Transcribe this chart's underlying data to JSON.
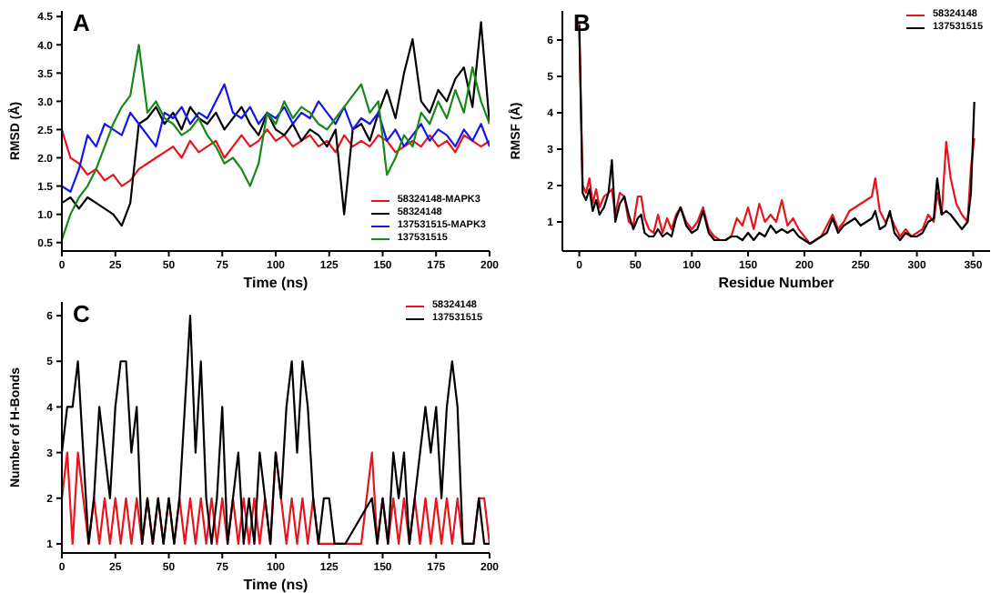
{
  "chart_data": [
    {
      "type": "line",
      "title": "A",
      "xlabel": "Time (ns)",
      "ylabel": "RMSD (Å)",
      "xlim": [
        0,
        200
      ],
      "ylim": [
        0.35,
        4.6
      ],
      "xticks": [
        0,
        25,
        50,
        75,
        100,
        125,
        150,
        175,
        200
      ],
      "yticks": [
        0.5,
        {
          "value": 1,
          "label": "1.0"
        },
        1.5,
        {
          "value": 2,
          "label": "2.0"
        },
        2.5,
        {
          "value": 3,
          "label": "3.0"
        },
        3.5,
        {
          "value": 4,
          "label": "4.0"
        },
        4.5
      ],
      "grid": false,
      "legend": "bottom right",
      "marker": "none",
      "line_style": "solid",
      "x": [
        0,
        4,
        8,
        12,
        16,
        20,
        24,
        28,
        32,
        36,
        40,
        44,
        48,
        52,
        56,
        60,
        64,
        68,
        72,
        76,
        80,
        84,
        88,
        92,
        96,
        100,
        104,
        108,
        112,
        116,
        120,
        124,
        128,
        132,
        136,
        140,
        144,
        148,
        152,
        156,
        160,
        164,
        168,
        172,
        176,
        180,
        184,
        188,
        192,
        196,
        200
      ],
      "series": [
        {
          "name": "58324148-MAPK3",
          "color": "#e8141b",
          "values": [
            2.5,
            2.0,
            1.9,
            1.7,
            1.8,
            1.6,
            1.7,
            1.5,
            1.6,
            1.8,
            1.9,
            2.0,
            2.1,
            2.2,
            2.0,
            2.3,
            2.1,
            2.2,
            2.3,
            2.0,
            2.2,
            2.4,
            2.2,
            2.3,
            2.5,
            2.3,
            2.4,
            2.2,
            2.3,
            2.4,
            2.2,
            2.3,
            2.1,
            2.4,
            2.2,
            2.3,
            2.2,
            2.4,
            2.3,
            2.1,
            2.2,
            2.3,
            2.2,
            2.4,
            2.2,
            2.3,
            2.1,
            2.4,
            2.3,
            2.2,
            2.3
          ]
        },
        {
          "name": "58324148",
          "color": "#000000",
          "values": [
            1.2,
            1.3,
            1.1,
            1.3,
            1.2,
            1.1,
            1.0,
            0.8,
            1.2,
            2.6,
            2.7,
            2.9,
            2.6,
            2.8,
            2.5,
            2.9,
            2.7,
            2.6,
            2.8,
            2.5,
            2.7,
            2.9,
            2.6,
            2.4,
            2.8,
            2.5,
            2.4,
            2.6,
            2.3,
            2.5,
            2.4,
            2.2,
            2.5,
            1.0,
            2.5,
            2.6,
            2.3,
            2.8,
            3.2,
            2.7,
            3.5,
            4.1,
            3.0,
            2.8,
            3.2,
            3.0,
            3.4,
            3.6,
            2.9,
            4.4,
            2.6
          ]
        },
        {
          "name": "137531515-MAPK3",
          "color": "#1414f0",
          "values": [
            1.5,
            1.4,
            1.8,
            2.4,
            2.2,
            2.6,
            2.5,
            2.4,
            2.8,
            2.6,
            2.4,
            2.2,
            2.8,
            2.7,
            2.9,
            2.6,
            2.8,
            2.7,
            3.0,
            3.3,
            2.8,
            2.7,
            2.9,
            2.6,
            2.8,
            2.7,
            2.9,
            2.6,
            2.8,
            2.7,
            3.0,
            2.8,
            2.6,
            2.9,
            2.5,
            2.7,
            2.6,
            2.8,
            2.3,
            2.5,
            2.2,
            2.4,
            2.6,
            2.3,
            2.5,
            2.4,
            2.2,
            2.5,
            2.3,
            2.6,
            2.2
          ]
        },
        {
          "name": "137531515",
          "color": "#158a15",
          "values": [
            0.55,
            1.0,
            1.3,
            1.5,
            1.8,
            2.2,
            2.6,
            2.9,
            3.1,
            4.0,
            2.8,
            3.0,
            2.7,
            2.6,
            2.4,
            2.5,
            2.7,
            2.4,
            2.2,
            1.9,
            2.0,
            1.8,
            1.5,
            1.9,
            2.8,
            2.6,
            3.0,
            2.7,
            2.9,
            2.8,
            2.6,
            2.5,
            2.7,
            2.9,
            3.1,
            3.3,
            2.8,
            3.0,
            1.7,
            2.0,
            2.4,
            2.2,
            2.8,
            2.6,
            3.0,
            2.7,
            3.2,
            2.8,
            3.6,
            3.0,
            2.6
          ]
        }
      ]
    },
    {
      "type": "line",
      "title": "B",
      "xlabel": "Residue Number",
      "ylabel": "RMSF (Å)",
      "xlim": [
        -15,
        365
      ],
      "ylim": [
        0.2,
        6.8
      ],
      "xticks": [
        0,
        50,
        100,
        150,
        200,
        250,
        300,
        350
      ],
      "yticks": [
        1,
        2,
        3,
        4,
        5,
        6
      ],
      "grid": false,
      "legend": "top right",
      "marker": "none",
      "line_style": "solid",
      "x": [
        0,
        3,
        6,
        9,
        12,
        15,
        18,
        22,
        26,
        29,
        32,
        36,
        40,
        44,
        48,
        52,
        55,
        58,
        62,
        66,
        70,
        74,
        78,
        82,
        86,
        90,
        95,
        100,
        105,
        110,
        115,
        120,
        125,
        130,
        135,
        140,
        145,
        150,
        155,
        160,
        165,
        170,
        175,
        180,
        185,
        190,
        195,
        200,
        205,
        210,
        215,
        220,
        225,
        230,
        235,
        240,
        245,
        250,
        255,
        260,
        263,
        267,
        272,
        276,
        280,
        285,
        290,
        295,
        300,
        305,
        310,
        315,
        318,
        322,
        326,
        330,
        335,
        340,
        345,
        348,
        351
      ],
      "series": [
        {
          "name": "58324148",
          "color": "#e8141b",
          "values": [
            6.5,
            2.0,
            1.8,
            2.2,
            1.5,
            1.9,
            1.4,
            1.7,
            1.8,
            1.9,
            1.2,
            1.8,
            1.7,
            1.0,
            0.9,
            1.7,
            1.7,
            1.1,
            0.8,
            0.7,
            1.2,
            0.7,
            1.1,
            0.8,
            1.2,
            1.4,
            1.0,
            0.8,
            1.0,
            1.4,
            0.8,
            0.6,
            0.5,
            0.5,
            0.6,
            1.1,
            0.9,
            1.4,
            0.8,
            1.5,
            1.0,
            1.2,
            1.0,
            1.6,
            0.9,
            1.1,
            0.8,
            0.6,
            0.4,
            0.5,
            0.6,
            0.9,
            1.2,
            0.8,
            1.0,
            1.3,
            1.4,
            1.5,
            1.6,
            1.7,
            2.2,
            1.3,
            1.0,
            1.2,
            0.9,
            0.6,
            0.8,
            0.6,
            0.7,
            0.8,
            1.2,
            1.0,
            1.8,
            1.2,
            3.2,
            2.2,
            1.5,
            1.2,
            1.0,
            2.5,
            3.3
          ]
        },
        {
          "name": "137531515",
          "color": "#000000",
          "values": [
            6.4,
            1.8,
            1.6,
            1.9,
            1.3,
            1.6,
            1.2,
            1.4,
            1.8,
            2.7,
            1.0,
            1.5,
            1.7,
            1.2,
            0.8,
            1.1,
            1.2,
            0.7,
            0.6,
            0.6,
            0.8,
            0.6,
            0.7,
            0.6,
            1.1,
            1.4,
            0.9,
            0.7,
            0.8,
            1.3,
            0.7,
            0.5,
            0.5,
            0.5,
            0.6,
            0.6,
            0.5,
            0.7,
            0.5,
            0.7,
            0.6,
            0.9,
            0.7,
            0.8,
            0.7,
            0.8,
            0.6,
            0.5,
            0.4,
            0.5,
            0.6,
            0.7,
            1.1,
            0.7,
            0.9,
            1.0,
            1.1,
            0.9,
            1.0,
            1.1,
            1.3,
            0.8,
            0.9,
            1.3,
            0.7,
            0.5,
            0.7,
            0.6,
            0.6,
            0.7,
            1.0,
            1.1,
            2.2,
            1.2,
            1.3,
            1.2,
            1.0,
            0.8,
            1.0,
            1.8,
            4.3
          ]
        }
      ]
    },
    {
      "type": "line",
      "title": "C",
      "xlabel": "Time (ns)",
      "ylabel": "Number of H-Bonds",
      "xlim": [
        0,
        200
      ],
      "ylim": [
        0.8,
        6.3
      ],
      "xticks": [
        0,
        25,
        50,
        75,
        100,
        125,
        150,
        175,
        200
      ],
      "yticks": [
        1,
        2,
        3,
        4,
        5,
        6
      ],
      "grid": false,
      "legend": "top right",
      "marker": "none",
      "line_style": "solid",
      "x": [
        0,
        2.5,
        5,
        7.5,
        10,
        12.5,
        15,
        17.5,
        20,
        22.5,
        25,
        27.5,
        30,
        32.5,
        35,
        37.5,
        40,
        42.5,
        45,
        47.5,
        50,
        52.5,
        55,
        57.5,
        60,
        62.5,
        65,
        67.5,
        70,
        72.5,
        75,
        77.5,
        80,
        82.5,
        85,
        87.5,
        90,
        92.5,
        95,
        97.5,
        100,
        102.5,
        105,
        107.5,
        110,
        112.5,
        115,
        117.5,
        120,
        122.5,
        125,
        127.5,
        130,
        132.5,
        135,
        137.5,
        140,
        142.5,
        145,
        147.5,
        150,
        152.5,
        155,
        157.5,
        160,
        162.5,
        165,
        167.5,
        170,
        172.5,
        175,
        177.5,
        180,
        182.5,
        185,
        187.5,
        190,
        192.5,
        195,
        197.5,
        200
      ],
      "series": [
        {
          "name": "58324148",
          "color": "#e8141b",
          "values": [
            2,
            3,
            1,
            3,
            2,
            1,
            2,
            1,
            2,
            1,
            2,
            1,
            2,
            1,
            2,
            1,
            2,
            1,
            2,
            1,
            2,
            1,
            2,
            1,
            2,
            1,
            2,
            1,
            2,
            1,
            2,
            1,
            2,
            1,
            2,
            1,
            2,
            1,
            2,
            1,
            3,
            2,
            1,
            2,
            1,
            2,
            1,
            2,
            1,
            1,
            1,
            1,
            1,
            1,
            1,
            1,
            1,
            2,
            3,
            1,
            2,
            1,
            2,
            1,
            2,
            1,
            2,
            1,
            2,
            1,
            2,
            1,
            2,
            1,
            2,
            1,
            1,
            1,
            2,
            2,
            1
          ]
        },
        {
          "name": "137531515",
          "color": "#000000",
          "x": [
            0,
            2.5,
            5,
            7.5,
            10,
            12.5,
            15,
            17.5,
            20,
            22.5,
            25,
            27.5,
            30,
            32.5,
            35,
            37.5,
            40,
            42.5,
            45,
            47.5,
            50,
            52.5,
            55,
            57.5,
            60,
            62.5,
            65,
            67.5,
            70,
            72.5,
            75,
            77.5,
            80,
            82.5,
            85,
            87.5,
            90,
            92.5,
            95,
            97.5,
            100,
            102.5,
            105,
            107.5,
            110,
            112.5,
            115,
            117.5,
            120,
            122.5,
            125,
            127.5,
            130,
            132.5,
            145,
            147.5,
            150,
            152.5,
            155,
            157.5,
            160,
            162.5,
            165,
            167.5,
            170,
            172.5,
            175,
            177.5,
            180,
            182.5,
            185,
            187.5,
            190,
            192.5,
            195,
            197.5,
            200
          ],
          "values": [
            3,
            4,
            4,
            5,
            3,
            1,
            2,
            4,
            3,
            2,
            4,
            5,
            5,
            3,
            4,
            1,
            2,
            1,
            2,
            1,
            2,
            1,
            2,
            4,
            6,
            3,
            5,
            2,
            1,
            2,
            4,
            1,
            2,
            3,
            1,
            2,
            1,
            3,
            2,
            1,
            3,
            2,
            4,
            5,
            3,
            5,
            4,
            2,
            1,
            2,
            2,
            1,
            1,
            1,
            2,
            1,
            2,
            1,
            3,
            2,
            3,
            1,
            2,
            3,
            4,
            3,
            4,
            2,
            4,
            5,
            4,
            1,
            1,
            1,
            2,
            1,
            1
          ]
        }
      ]
    }
  ]
}
